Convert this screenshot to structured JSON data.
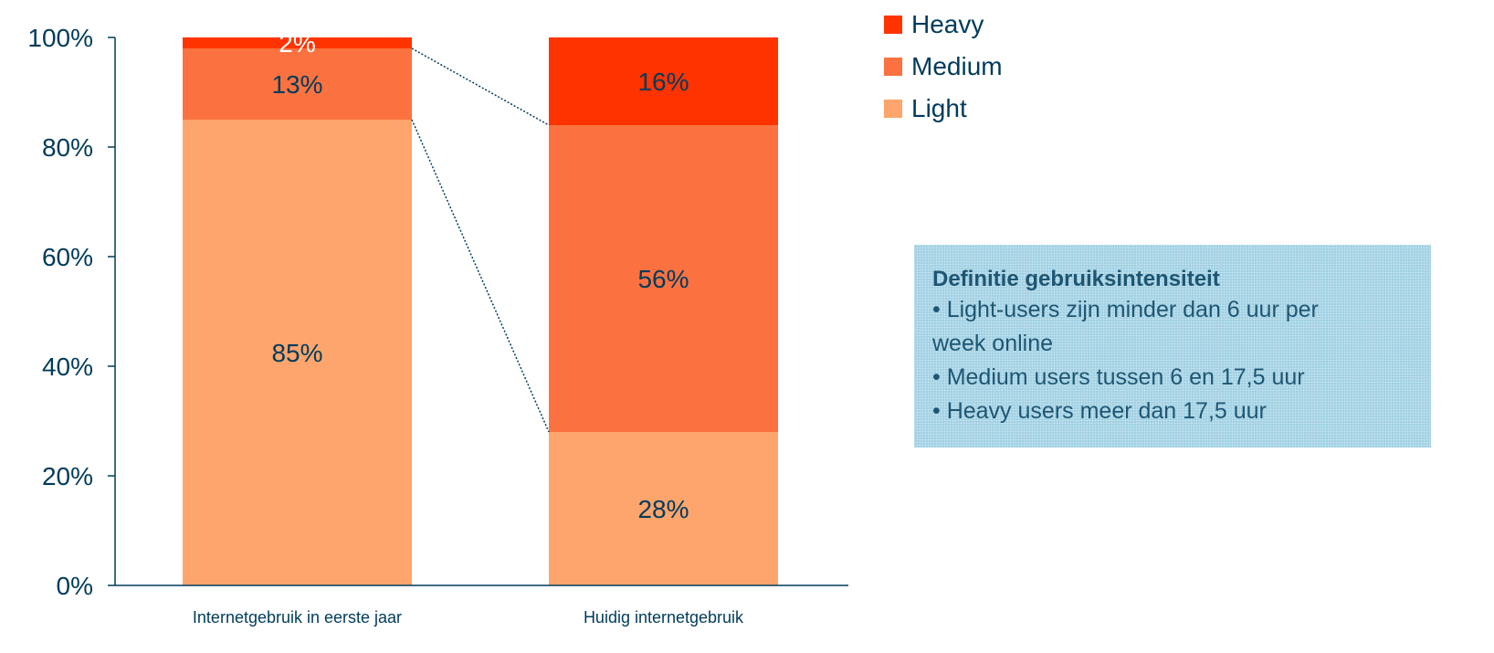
{
  "chart_data": {
    "type": "bar",
    "stacked": true,
    "categories": [
      "Internetgebruik in eerste jaar",
      "Huidig internetgebruik"
    ],
    "series": [
      {
        "name": "Light",
        "values": [
          85,
          28
        ],
        "labels": [
          "85%",
          "28%"
        ],
        "color": "#fda56c"
      },
      {
        "name": "Medium",
        "values": [
          13,
          56
        ],
        "labels": [
          "13%",
          "56%"
        ],
        "color": "#fb7240"
      },
      {
        "name": "Heavy",
        "values": [
          2,
          16
        ],
        "labels": [
          "2%",
          "16%"
        ],
        "color": "#ff3300"
      }
    ],
    "y_ticks": [
      "0%",
      "20%",
      "40%",
      "60%",
      "80%",
      "100%"
    ],
    "ylim": [
      0,
      100
    ],
    "legend_position": "top-right",
    "grid": false
  },
  "legend": [
    {
      "label": "Heavy",
      "color": "#ff3300"
    },
    {
      "label": "Medium",
      "color": "#fb7240"
    },
    {
      "label": "Light",
      "color": "#fda56c"
    }
  ],
  "infobox": {
    "title": "Definitie gebruiksintensiteit",
    "lines": [
      "• Light-users zijn minder dan 6 uur per",
      "week online",
      "• Medium users tussen 6 en 17,5 uur",
      "• Heavy users meer dan 17,5 uur"
    ]
  }
}
